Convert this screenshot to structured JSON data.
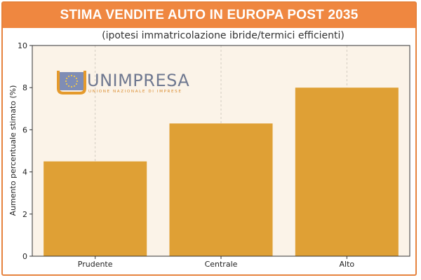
{
  "header": {
    "title": "STIMA VENDITE AUTO IN EUROPA POST 2035"
  },
  "logo": {
    "name": "UNIMPRESA",
    "tagline": "UNIONE NAZIONALE DI IMPRESE"
  },
  "colors": {
    "header_bg": "#ef8740",
    "bar": "#dfa035",
    "plot_bg": "#fbf3e8",
    "border": "#e6833e"
  },
  "chart_data": {
    "type": "bar",
    "subtitle": "(ipotesi immatricolazione ibride/termici efficienti)",
    "categories": [
      "Prudente",
      "Centrale",
      "Alto"
    ],
    "values": [
      4.5,
      6.3,
      8.0
    ],
    "ylabel": "Aumento percentuale stimato (%)",
    "ylim": [
      0,
      10
    ],
    "yticks": [
      "0",
      "2",
      "4",
      "6",
      "8",
      "10"
    ],
    "grid": "vertical dashed"
  }
}
